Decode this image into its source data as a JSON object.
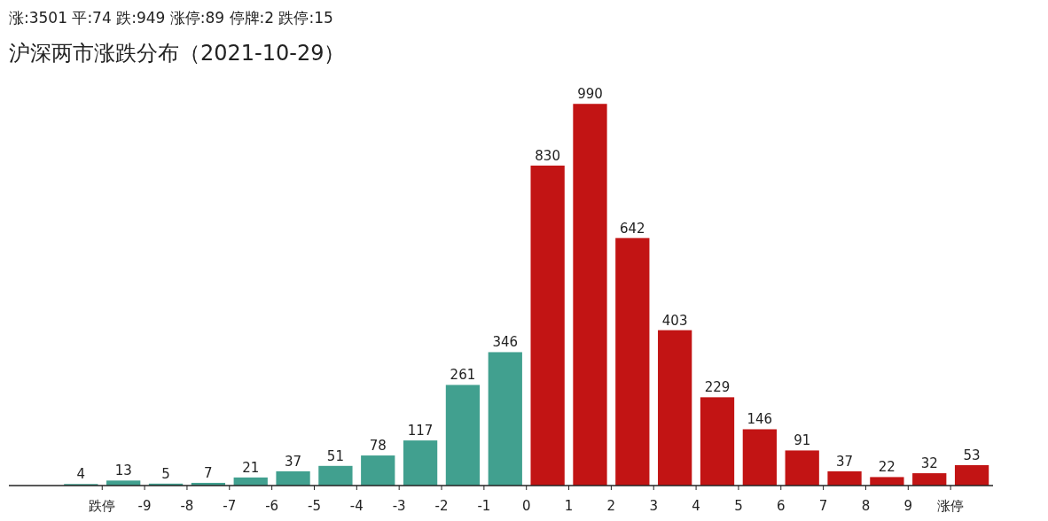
{
  "chart_data": {
    "type": "bar",
    "subtitle": "涨:3501 平:74 跌:949 涨停:89 停牌:2 跌停:15",
    "title": "沪深两市涨跌分布（2021-10-29）",
    "x": [
      -10.5,
      -9.5,
      -8.5,
      -7.5,
      -6.5,
      -5.5,
      -4.5,
      -3.5,
      -2.5,
      -1.5,
      -0.5,
      0.5,
      1.5,
      2.5,
      3.5,
      4.5,
      5.5,
      6.5,
      7.5,
      8.5,
      9.5,
      10.5
    ],
    "values": [
      4,
      13,
      5,
      7,
      21,
      37,
      51,
      78,
      117,
      261,
      346,
      830,
      990,
      642,
      403,
      229,
      146,
      91,
      37,
      22,
      32,
      53
    ],
    "colors": [
      "#41a08f",
      "#41a08f",
      "#41a08f",
      "#41a08f",
      "#41a08f",
      "#41a08f",
      "#41a08f",
      "#41a08f",
      "#41a08f",
      "#41a08f",
      "#41a08f",
      "#c21414",
      "#c21414",
      "#c21414",
      "#c21414",
      "#c21414",
      "#c21414",
      "#c21414",
      "#c21414",
      "#c21414",
      "#c21414",
      "#c21414"
    ],
    "xlim": [
      -12.2,
      11
    ],
    "xticks": [
      {
        "value": -10,
        "label": "跌停"
      },
      {
        "value": -9,
        "label": "-9"
      },
      {
        "value": -8,
        "label": "-8"
      },
      {
        "value": -7,
        "label": "-7"
      },
      {
        "value": -6,
        "label": "-6"
      },
      {
        "value": -5,
        "label": "-5"
      },
      {
        "value": -4,
        "label": "-4"
      },
      {
        "value": -3,
        "label": "-3"
      },
      {
        "value": -2,
        "label": "-2"
      },
      {
        "value": -1,
        "label": "-1"
      },
      {
        "value": 0,
        "label": "0"
      },
      {
        "value": 1,
        "label": "1"
      },
      {
        "value": 2,
        "label": "2"
      },
      {
        "value": 3,
        "label": "3"
      },
      {
        "value": 4,
        "label": "4"
      },
      {
        "value": 5,
        "label": "5"
      },
      {
        "value": 6,
        "label": "6"
      },
      {
        "value": 7,
        "label": "7"
      },
      {
        "value": 8,
        "label": "8"
      },
      {
        "value": 9,
        "label": "9"
      },
      {
        "value": 10,
        "label": "涨停"
      }
    ],
    "data_labels": true
  }
}
